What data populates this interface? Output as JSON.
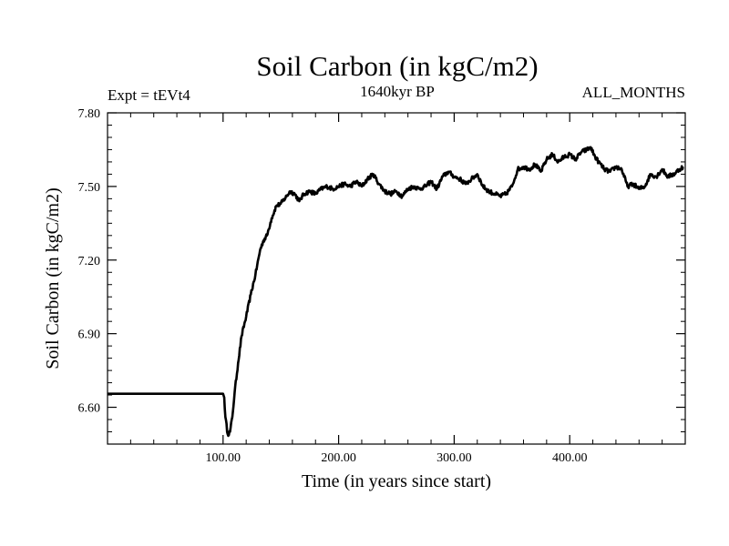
{
  "chart_data": {
    "type": "line",
    "title": "Soil Carbon (in kgC/m2)",
    "subtitle_left": "Expt = tEVt4",
    "subtitle_center": "1640kyr BP",
    "subtitle_right": "ALL_MONTHS",
    "xlabel": "Time (in years since start)",
    "ylabel": "Soil Carbon (in kgC/m2)",
    "xlim": [
      0,
      500
    ],
    "ylim": [
      6.45,
      7.8
    ],
    "x_ticks": [
      100,
      200,
      300,
      400
    ],
    "x_tick_labels": [
      "100.00",
      "200.00",
      "300.00",
      "400.00"
    ],
    "y_ticks": [
      6.6,
      6.9,
      7.2,
      7.5,
      7.8
    ],
    "y_tick_labels": [
      "6.60",
      "6.90",
      "7.20",
      "7.50",
      "7.80"
    ],
    "series": [
      {
        "name": "Soil Carbon",
        "color": "#000000",
        "x": [
          0,
          100,
          101,
          102,
          104,
          106,
          108,
          110,
          113,
          116,
          120,
          124,
          128,
          132,
          135,
          138,
          142,
          146,
          150,
          155,
          158,
          162,
          166,
          170,
          175,
          180,
          185,
          190,
          195,
          200,
          205,
          210,
          215,
          220,
          225,
          230,
          235,
          240,
          245,
          250,
          255,
          260,
          265,
          270,
          275,
          280,
          285,
          290,
          295,
          300,
          305,
          310,
          315,
          320,
          325,
          330,
          335,
          340,
          345,
          350,
          355,
          360,
          365,
          370,
          375,
          380,
          385,
          390,
          395,
          400,
          405,
          410,
          415,
          418,
          422,
          425,
          430,
          435,
          440,
          445,
          450,
          455,
          460,
          465,
          470,
          475,
          480,
          485,
          490,
          495,
          498
        ],
        "y": [
          6.655,
          6.655,
          6.64,
          6.56,
          6.49,
          6.5,
          6.56,
          6.66,
          6.78,
          6.89,
          6.97,
          7.06,
          7.14,
          7.24,
          7.28,
          7.3,
          7.37,
          7.42,
          7.43,
          7.46,
          7.48,
          7.47,
          7.44,
          7.47,
          7.48,
          7.47,
          7.49,
          7.5,
          7.49,
          7.5,
          7.51,
          7.5,
          7.52,
          7.5,
          7.53,
          7.55,
          7.51,
          7.48,
          7.47,
          7.48,
          7.46,
          7.49,
          7.5,
          7.49,
          7.5,
          7.52,
          7.49,
          7.54,
          7.56,
          7.54,
          7.53,
          7.51,
          7.53,
          7.55,
          7.5,
          7.48,
          7.47,
          7.46,
          7.47,
          7.5,
          7.57,
          7.58,
          7.57,
          7.59,
          7.56,
          7.61,
          7.63,
          7.6,
          7.62,
          7.63,
          7.61,
          7.64,
          7.65,
          7.66,
          7.62,
          7.6,
          7.57,
          7.56,
          7.58,
          7.57,
          7.5,
          7.51,
          7.49,
          7.5,
          7.55,
          7.54,
          7.57,
          7.54,
          7.55,
          7.57,
          7.58
        ]
      }
    ]
  }
}
